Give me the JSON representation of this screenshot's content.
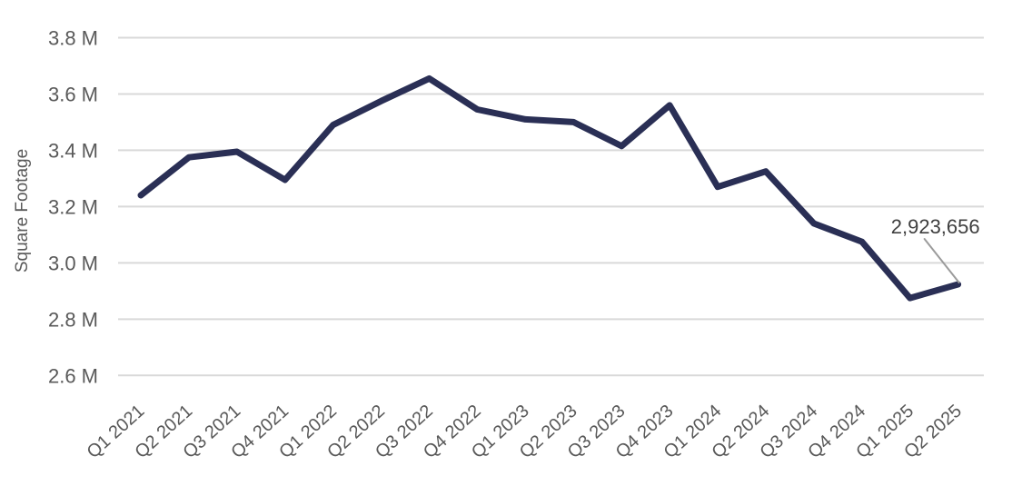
{
  "chart_data": {
    "type": "line",
    "title": "",
    "xlabel": "",
    "ylabel": "Square Footage",
    "categories": [
      "Q1 2021",
      "Q2 2021",
      "Q3 2021",
      "Q4 2021",
      "Q1 2022",
      "Q2 2022",
      "Q3 2022",
      "Q4 2022",
      "Q1 2023",
      "Q2 2023",
      "Q3 2023",
      "Q4 2023",
      "Q1 2024",
      "Q2 2024",
      "Q3 2024",
      "Q4 2024",
      "Q1 2025",
      "Q2 2025"
    ],
    "series": [
      {
        "name": "Square Footage",
        "values": [
          3240000,
          3375000,
          3395000,
          3295000,
          3490000,
          3575000,
          3655000,
          3545000,
          3510000,
          3500000,
          3415000,
          3560000,
          3270000,
          3325000,
          3140000,
          3075000,
          2875000,
          2923656
        ]
      }
    ],
    "ylim": [
      2600000,
      3800000
    ],
    "yticks": {
      "values": [
        3800000,
        3600000,
        3400000,
        3200000,
        3000000,
        2800000,
        2600000
      ],
      "labels": [
        "3.8 M",
        "3.6 M",
        "3.4 M",
        "3.2 M",
        "3.0 M",
        "2.8 M",
        "2.6 M"
      ]
    },
    "grid": "horizontal",
    "legend": "none",
    "annotation": {
      "text": "2,923,656",
      "point_index": 17
    },
    "colors": {
      "line": "#2a2f55",
      "grid": "#d9d9d9",
      "axis_text": "#595959",
      "annotation_text": "#3f3f3f",
      "leader": "#9b9b9b",
      "background": "#ffffff"
    }
  }
}
